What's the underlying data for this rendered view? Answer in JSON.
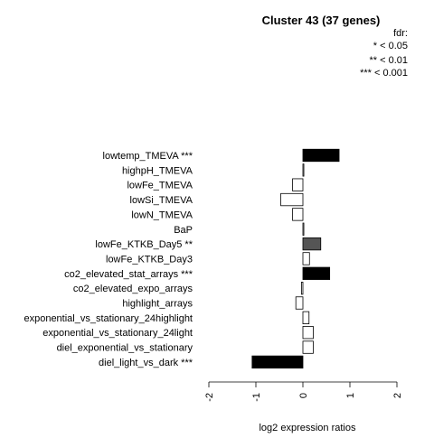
{
  "chart_data": {
    "type": "bar",
    "orientation": "horizontal",
    "title": "Cluster 43 (37 genes)",
    "xlabel": "log2 expression ratios",
    "xlim": [
      -2,
      2
    ],
    "xticks": [
      "-2",
      "-1",
      "0",
      "1",
      "2"
    ],
    "legend": {
      "title": "fdr:",
      "entries": [
        "* < 0.05",
        "** < 0.01",
        "*** < 0.001"
      ],
      "placement": "top-right"
    },
    "categories": [
      "lowtemp_TMEVA ***",
      "highpH_TMEVA",
      "lowFe_TMEVA",
      "lowSi_TMEVA",
      "lowN_TMEVA",
      "BaP",
      "lowFe_KTKB_Day5 **",
      "lowFe_KTKB_Day3",
      "co2_elevated_stat_arrays ***",
      "co2_elevated_expo_arrays",
      "highlight_arrays",
      "exponential_vs_stationary_24highlight",
      "exponential_vs_stationary_24light",
      "diel_exponential_vs_stationary",
      "diel_light_vs_dark ***"
    ],
    "values": [
      0.77,
      0.02,
      -0.22,
      -0.47,
      -0.22,
      0.02,
      0.38,
      0.14,
      0.57,
      -0.03,
      -0.15,
      0.13,
      0.22,
      0.22,
      -1.08
    ],
    "significance": [
      "***",
      "",
      "",
      "",
      "",
      "",
      "**",
      "",
      "***",
      "",
      "",
      "",
      "",
      "",
      "***"
    ],
    "colors": {
      "***": "#000000",
      "**": "#555555",
      "none": "#ffffff",
      "stroke": "#000000"
    }
  }
}
